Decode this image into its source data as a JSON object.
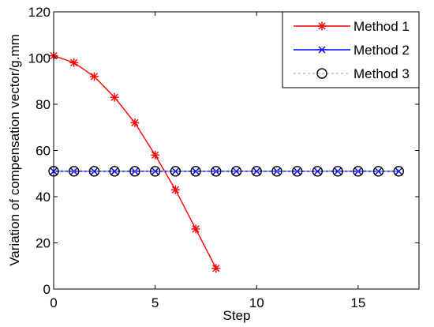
{
  "chart_data": {
    "type": "line",
    "xlabel": "Step",
    "ylabel": "Variation of compensation vector/g.mm",
    "xlim": [
      0,
      18
    ],
    "ylim": [
      0,
      120
    ],
    "xticks": [
      0,
      5,
      10,
      15
    ],
    "yticks": [
      0,
      20,
      40,
      60,
      80,
      100,
      120
    ],
    "grid": false,
    "legend_position": "top-right",
    "series": [
      {
        "name": "Method 1",
        "color": "#ff0000",
        "marker": "asterisk",
        "line_style": "solid",
        "x": [
          0,
          1,
          2,
          3,
          4,
          5,
          6,
          7,
          8
        ],
        "y": [
          101,
          98,
          92,
          83,
          72,
          58,
          43,
          26,
          9
        ]
      },
      {
        "name": "Method 2",
        "color": "#0000ff",
        "marker": "x",
        "line_style": "solid",
        "x": [
          0,
          1,
          2,
          3,
          4,
          5,
          6,
          7,
          8,
          9,
          10,
          11,
          12,
          13,
          14,
          15,
          16,
          17
        ],
        "y": [
          51,
          51,
          51,
          51,
          51,
          51,
          51,
          51,
          51,
          51,
          51,
          51,
          51,
          51,
          51,
          51,
          51,
          51
        ]
      },
      {
        "name": "Method 3",
        "color": "#000000",
        "line_color": "#999999",
        "marker": "circle",
        "line_style": "dashed",
        "x": [
          0,
          1,
          2,
          3,
          4,
          5,
          6,
          7,
          8,
          9,
          10,
          11,
          12,
          13,
          14,
          15,
          16,
          17
        ],
        "y": [
          51,
          51,
          51,
          51,
          51,
          51,
          51,
          51,
          51,
          51,
          51,
          51,
          51,
          51,
          51,
          51,
          51,
          51
        ]
      }
    ]
  }
}
